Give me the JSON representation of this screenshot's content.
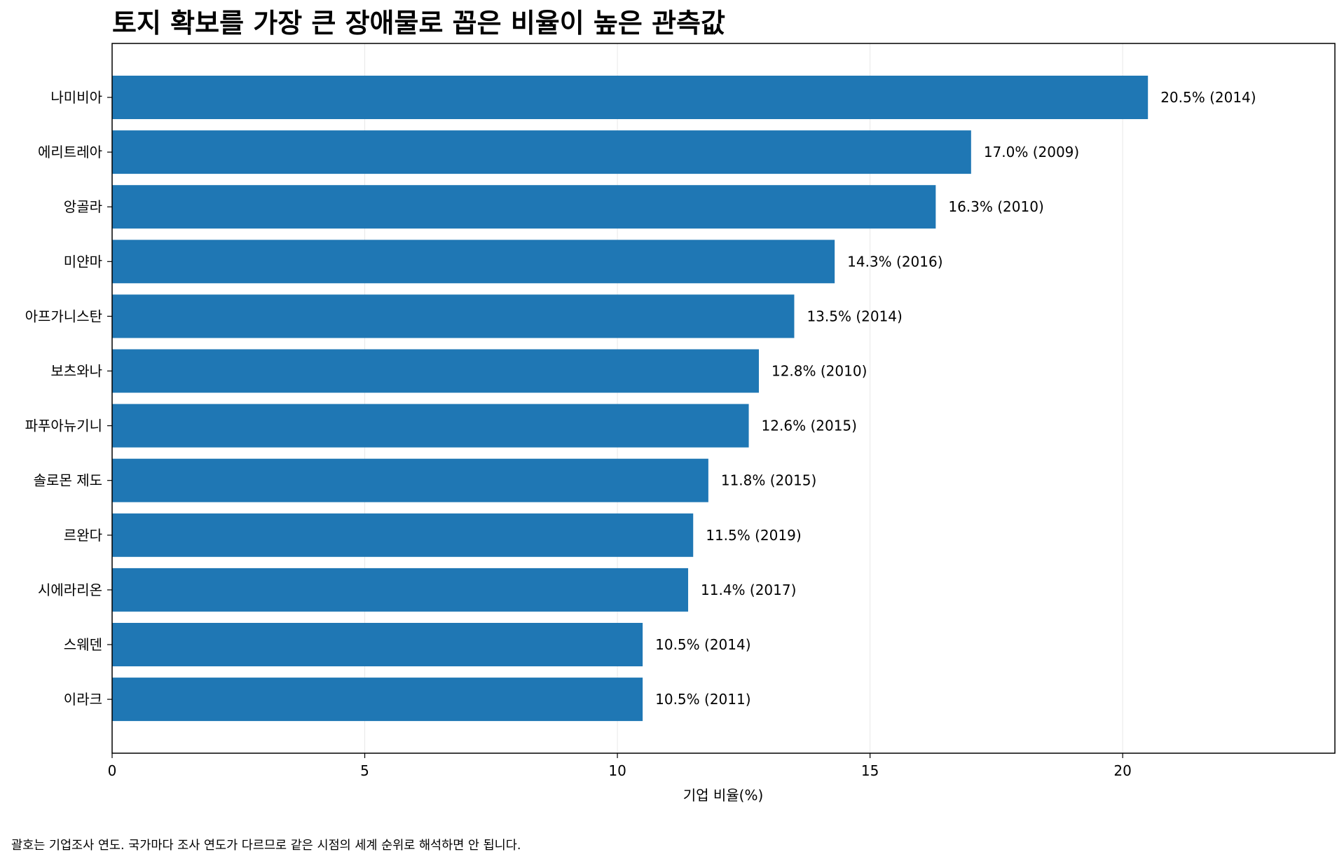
{
  "chart_data": {
    "type": "bar",
    "orientation": "horizontal",
    "title": "토지 확보를 가장 큰 장애물로 꼽은 비율이 높은 관측값",
    "xlabel": "기업 비율(%)",
    "ylabel": "",
    "xlim": [
      0,
      24.2
    ],
    "xticks": [
      0,
      5,
      10,
      15,
      20
    ],
    "grid": "vertical",
    "bar_color": "#1f77b4",
    "categories": [
      "나미비아",
      "에리트레아",
      "앙골라",
      "미얀마",
      "아프가니스탄",
      "보츠와나",
      "파푸아뉴기니",
      "솔로몬 제도",
      "르완다",
      "시에라리온",
      "스웨덴",
      "이라크"
    ],
    "values": [
      20.5,
      17.0,
      16.3,
      14.3,
      13.5,
      12.8,
      12.6,
      11.8,
      11.5,
      11.4,
      10.5,
      10.5
    ],
    "years": [
      "2014",
      "2009",
      "2010",
      "2016",
      "2014",
      "2010",
      "2015",
      "2015",
      "2019",
      "2017",
      "2014",
      "2011"
    ],
    "data_labels": [
      "20.5% (2014)",
      "17.0% (2009)",
      "16.3% (2010)",
      "14.3% (2016)",
      "13.5% (2014)",
      "12.8% (2010)",
      "12.6% (2015)",
      "11.8% (2015)",
      "11.5% (2019)",
      "11.4% (2017)",
      "10.5% (2014)",
      "10.5% (2011)"
    ],
    "footnote": "괄호는 기업조사 연도. 국가마다 조사 연도가 다르므로 같은 시점의 세계 순위로 해석하면 안 됩니다."
  }
}
